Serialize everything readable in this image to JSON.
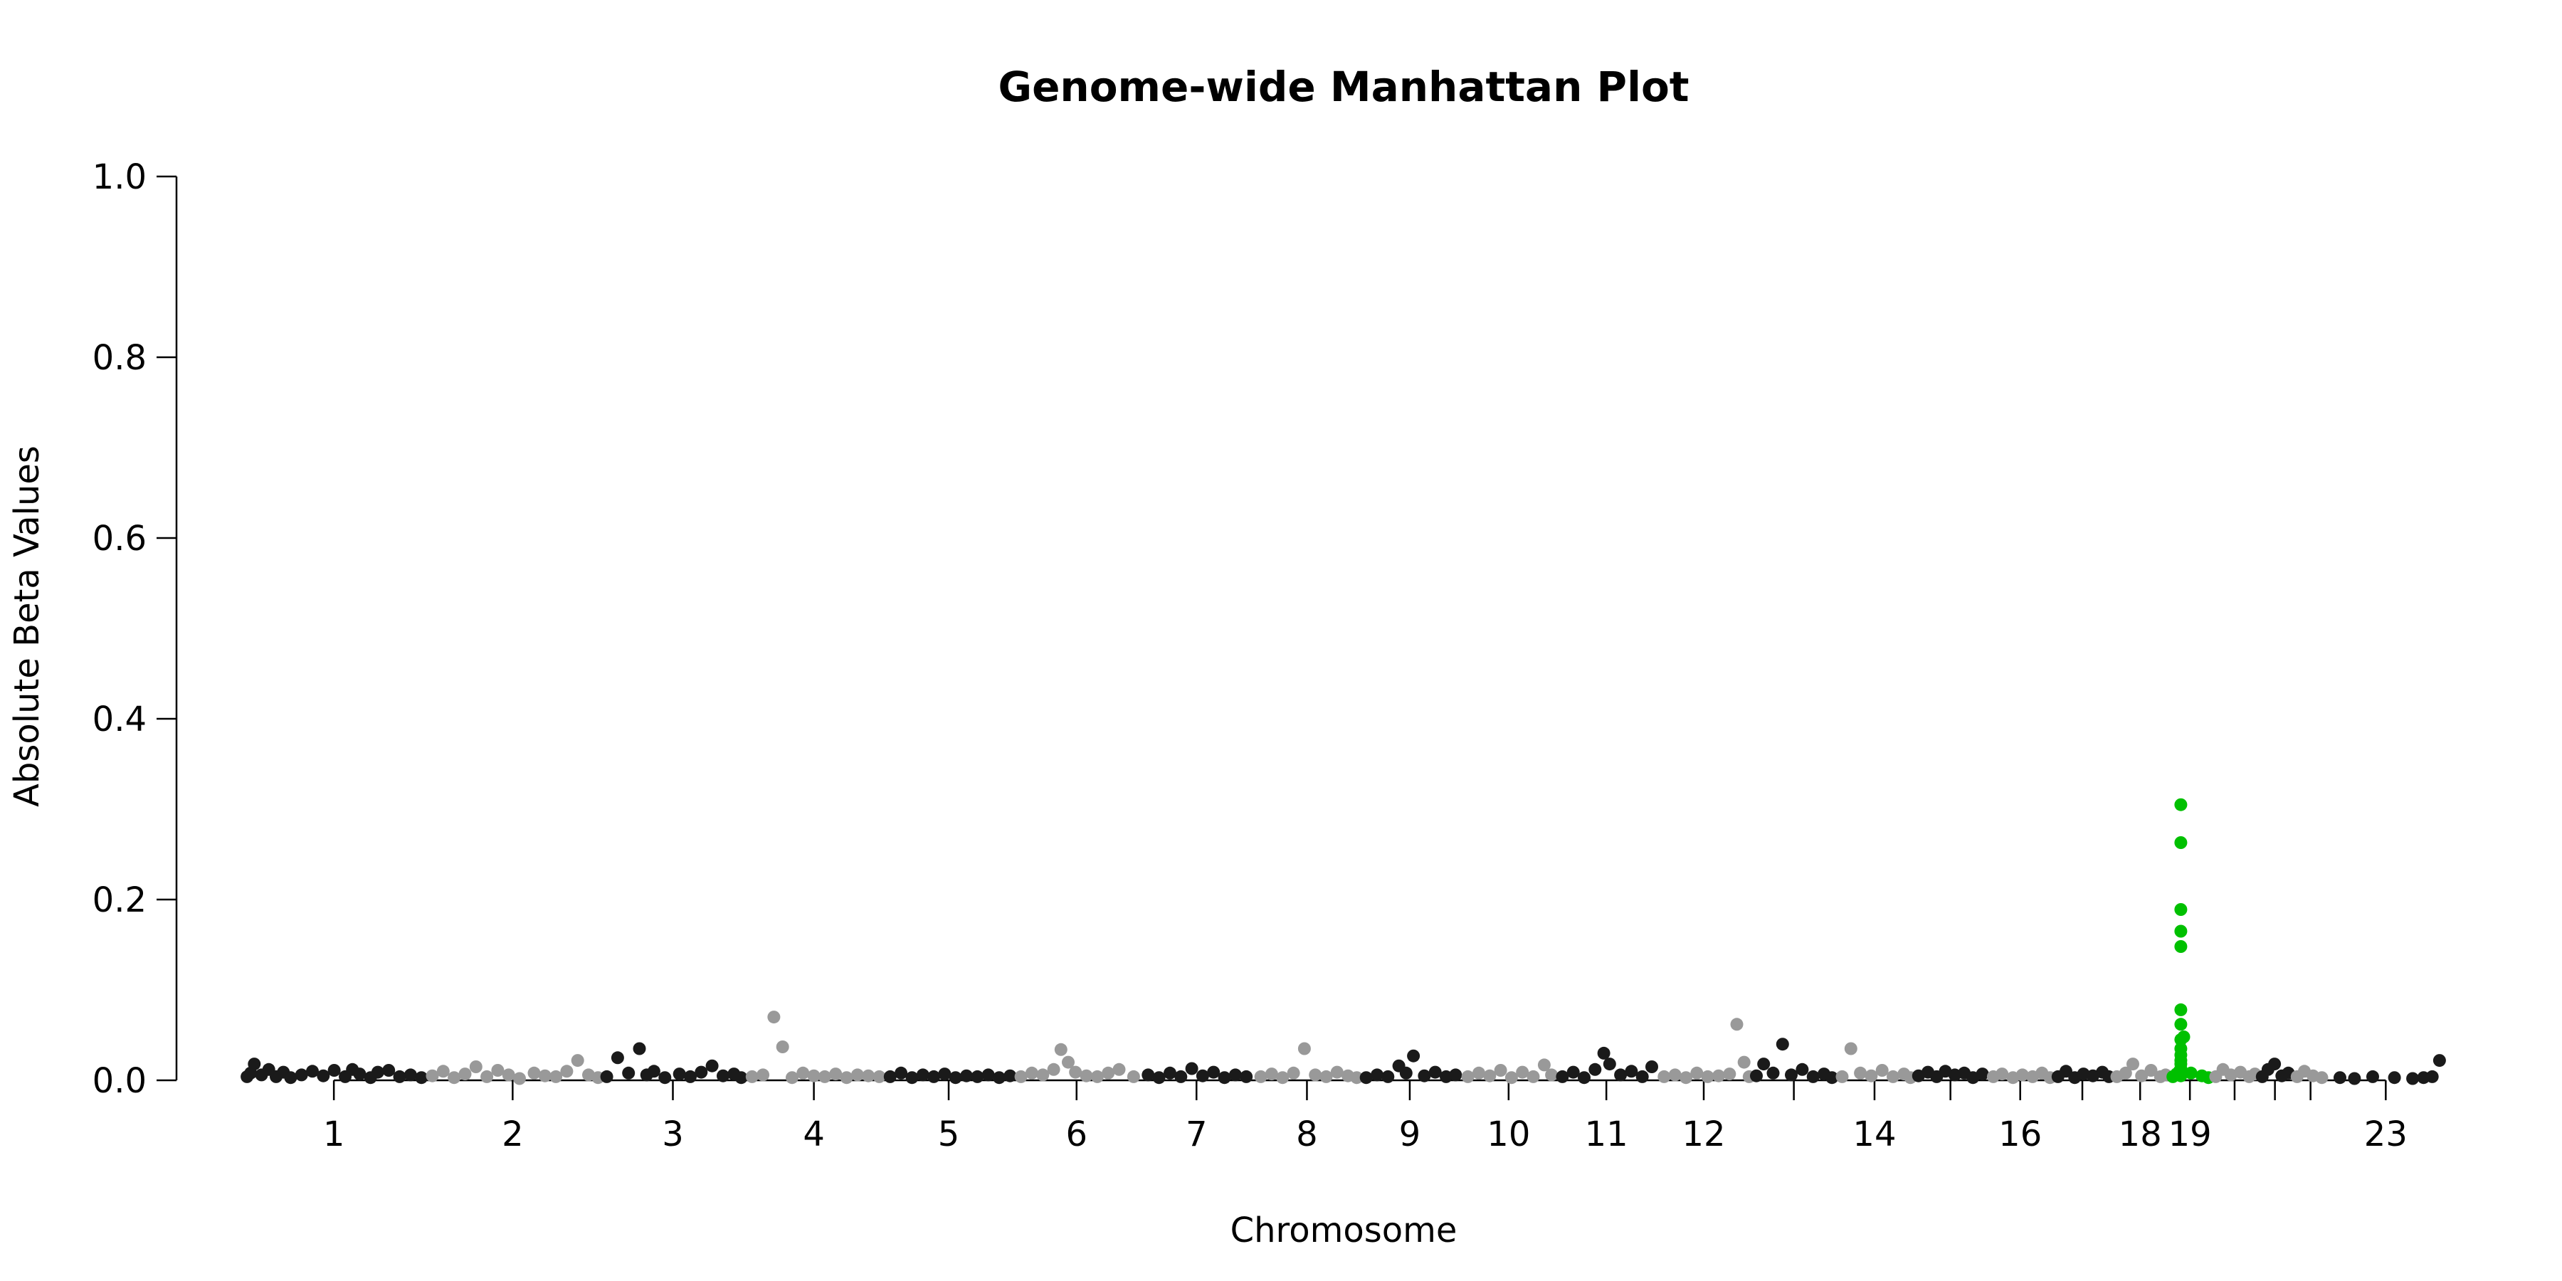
{
  "chart_data": {
    "type": "scatter",
    "title": "Genome-wide Manhattan Plot",
    "xlabel": "Chromosome",
    "ylabel": "Absolute Beta Values",
    "ylim": [
      0,
      1.0
    ],
    "yticks": [
      "0.0",
      "0.2",
      "0.4",
      "0.6",
      "0.8",
      "1.0"
    ],
    "xtick_labels": [
      "1",
      "2",
      "3",
      "4",
      "5",
      "6",
      "7",
      "8",
      "9",
      "10",
      "11",
      "12",
      "14",
      "16",
      "18",
      "19",
      "23"
    ],
    "grid": false,
    "legend": "none",
    "colors": {
      "odd": "#1a1a1a",
      "even": "#999999",
      "highlight": "#00c000"
    },
    "chromosomes": [
      {
        "chr": "1",
        "label": "1",
        "start": 0,
        "end": 249,
        "color": "odd",
        "points": [
          [
            5,
            0.004
          ],
          [
            10,
            0.008
          ],
          [
            15,
            0.018
          ],
          [
            25,
            0.006
          ],
          [
            35,
            0.012
          ],
          [
            45,
            0.004
          ],
          [
            55,
            0.009
          ],
          [
            65,
            0.003
          ],
          [
            80,
            0.006
          ],
          [
            95,
            0.01
          ],
          [
            110,
            0.005
          ],
          [
            125,
            0.011
          ],
          [
            140,
            0.004
          ],
          [
            150,
            0.012
          ],
          [
            160,
            0.007
          ],
          [
            175,
            0.003
          ],
          [
            185,
            0.009
          ],
          [
            200,
            0.011
          ],
          [
            215,
            0.004
          ],
          [
            230,
            0.006
          ],
          [
            245,
            0.003
          ]
        ]
      },
      {
        "chr": "2",
        "label": "2",
        "start": 249,
        "end": 492,
        "color": "even",
        "points": [
          [
            260,
            0.005
          ],
          [
            275,
            0.01
          ],
          [
            290,
            0.003
          ],
          [
            305,
            0.007
          ],
          [
            320,
            0.015
          ],
          [
            335,
            0.004
          ],
          [
            350,
            0.011
          ],
          [
            365,
            0.006
          ],
          [
            380,
            0.002
          ],
          [
            400,
            0.008
          ],
          [
            415,
            0.005
          ],
          [
            430,
            0.004
          ],
          [
            445,
            0.01
          ],
          [
            460,
            0.022
          ],
          [
            475,
            0.006
          ],
          [
            488,
            0.003
          ]
        ]
      },
      {
        "chr": "3",
        "label": "3",
        "start": 492,
        "end": 690,
        "color": "odd",
        "points": [
          [
            500,
            0.004
          ],
          [
            515,
            0.025
          ],
          [
            530,
            0.008
          ],
          [
            545,
            0.035
          ],
          [
            555,
            0.006
          ],
          [
            565,
            0.01
          ],
          [
            580,
            0.003
          ],
          [
            600,
            0.007
          ],
          [
            615,
            0.004
          ],
          [
            630,
            0.009
          ],
          [
            645,
            0.016
          ],
          [
            660,
            0.005
          ],
          [
            675,
            0.007
          ],
          [
            685,
            0.003
          ]
        ]
      },
      {
        "chr": "4",
        "label": "4",
        "start": 690,
        "end": 880,
        "color": "even",
        "points": [
          [
            700,
            0.004
          ],
          [
            715,
            0.006
          ],
          [
            730,
            0.07
          ],
          [
            742,
            0.037
          ],
          [
            755,
            0.003
          ],
          [
            770,
            0.008
          ],
          [
            785,
            0.005
          ],
          [
            800,
            0.004
          ],
          [
            815,
            0.007
          ],
          [
            830,
            0.003
          ],
          [
            845,
            0.006
          ],
          [
            860,
            0.005
          ],
          [
            875,
            0.004
          ]
        ]
      },
      {
        "chr": "5",
        "label": "5",
        "start": 880,
        "end": 1061,
        "color": "odd",
        "points": [
          [
            890,
            0.004
          ],
          [
            905,
            0.008
          ],
          [
            920,
            0.003
          ],
          [
            935,
            0.006
          ],
          [
            950,
            0.004
          ],
          [
            965,
            0.007
          ],
          [
            980,
            0.003
          ],
          [
            995,
            0.005
          ],
          [
            1010,
            0.004
          ],
          [
            1025,
            0.006
          ],
          [
            1040,
            0.003
          ],
          [
            1055,
            0.005
          ]
        ]
      },
      {
        "chr": "6",
        "label": "6",
        "start": 1061,
        "end": 1232,
        "color": "even",
        "points": [
          [
            1070,
            0.004
          ],
          [
            1085,
            0.008
          ],
          [
            1100,
            0.006
          ],
          [
            1115,
            0.012
          ],
          [
            1125,
            0.034
          ],
          [
            1135,
            0.02
          ],
          [
            1145,
            0.009
          ],
          [
            1160,
            0.005
          ],
          [
            1175,
            0.004
          ],
          [
            1190,
            0.008
          ],
          [
            1205,
            0.012
          ],
          [
            1225,
            0.004
          ]
        ]
      },
      {
        "chr": "7",
        "label": "7",
        "start": 1232,
        "end": 1391,
        "color": "odd",
        "points": [
          [
            1245,
            0.006
          ],
          [
            1260,
            0.003
          ],
          [
            1275,
            0.008
          ],
          [
            1290,
            0.004
          ],
          [
            1305,
            0.013
          ],
          [
            1320,
            0.005
          ],
          [
            1335,
            0.009
          ],
          [
            1350,
            0.003
          ],
          [
            1365,
            0.006
          ],
          [
            1380,
            0.004
          ]
        ]
      },
      {
        "chr": "8",
        "label": "8",
        "start": 1391,
        "end": 1536,
        "color": "even",
        "points": [
          [
            1400,
            0.004
          ],
          [
            1415,
            0.007
          ],
          [
            1430,
            0.003
          ],
          [
            1445,
            0.008
          ],
          [
            1460,
            0.035
          ],
          [
            1475,
            0.006
          ],
          [
            1490,
            0.004
          ],
          [
            1505,
            0.009
          ],
          [
            1520,
            0.005
          ],
          [
            1532,
            0.003
          ]
        ]
      },
      {
        "chr": "9",
        "label": "9",
        "start": 1536,
        "end": 1674,
        "color": "odd",
        "points": [
          [
            1545,
            0.003
          ],
          [
            1560,
            0.006
          ],
          [
            1575,
            0.004
          ],
          [
            1590,
            0.016
          ],
          [
            1600,
            0.008
          ],
          [
            1610,
            0.027
          ],
          [
            1625,
            0.005
          ],
          [
            1640,
            0.009
          ],
          [
            1655,
            0.004
          ],
          [
            1668,
            0.006
          ]
        ]
      },
      {
        "chr": "10",
        "label": "10",
        "start": 1674,
        "end": 1808,
        "color": "even",
        "points": [
          [
            1685,
            0.004
          ],
          [
            1700,
            0.008
          ],
          [
            1715,
            0.005
          ],
          [
            1730,
            0.011
          ],
          [
            1745,
            0.003
          ],
          [
            1760,
            0.009
          ],
          [
            1775,
            0.004
          ],
          [
            1790,
            0.017
          ],
          [
            1800,
            0.006
          ]
        ]
      },
      {
        "chr": "11",
        "label": "11",
        "start": 1808,
        "end": 1943,
        "color": "odd",
        "points": [
          [
            1815,
            0.004
          ],
          [
            1830,
            0.009
          ],
          [
            1845,
            0.003
          ],
          [
            1860,
            0.012
          ],
          [
            1872,
            0.03
          ],
          [
            1880,
            0.018
          ],
          [
            1895,
            0.006
          ],
          [
            1910,
            0.01
          ],
          [
            1925,
            0.004
          ],
          [
            1938,
            0.015
          ]
        ]
      },
      {
        "chr": "12",
        "label": "12",
        "start": 1943,
        "end": 2076,
        "color": "even",
        "points": [
          [
            1955,
            0.004
          ],
          [
            1970,
            0.006
          ],
          [
            1985,
            0.003
          ],
          [
            2000,
            0.008
          ],
          [
            2015,
            0.004
          ],
          [
            2030,
            0.005
          ],
          [
            2045,
            0.007
          ],
          [
            2055,
            0.062
          ],
          [
            2065,
            0.02
          ],
          [
            2072,
            0.004
          ]
        ]
      },
      {
        "chr": "13",
        "label": "",
        "start": 2076,
        "end": 2191,
        "color": "odd",
        "points": [
          [
            2082,
            0.005
          ],
          [
            2092,
            0.018
          ],
          [
            2105,
            0.008
          ],
          [
            2118,
            0.04
          ],
          [
            2130,
            0.006
          ],
          [
            2145,
            0.012
          ],
          [
            2160,
            0.004
          ],
          [
            2175,
            0.007
          ],
          [
            2186,
            0.003
          ]
        ]
      },
      {
        "chr": "14",
        "label": "14",
        "start": 2191,
        "end": 2298,
        "color": "even",
        "points": [
          [
            2200,
            0.004
          ],
          [
            2212,
            0.035
          ],
          [
            2225,
            0.008
          ],
          [
            2240,
            0.005
          ],
          [
            2255,
            0.011
          ],
          [
            2270,
            0.004
          ],
          [
            2285,
            0.007
          ],
          [
            2294,
            0.003
          ]
        ]
      },
      {
        "chr": "15",
        "label": "",
        "start": 2298,
        "end": 2400,
        "color": "odd",
        "points": [
          [
            2305,
            0.005
          ],
          [
            2318,
            0.009
          ],
          [
            2330,
            0.004
          ],
          [
            2342,
            0.01
          ],
          [
            2355,
            0.006
          ],
          [
            2368,
            0.008
          ],
          [
            2380,
            0.003
          ],
          [
            2393,
            0.007
          ]
        ]
      },
      {
        "chr": "16",
        "label": "16",
        "start": 2400,
        "end": 2490,
        "color": "even",
        "points": [
          [
            2408,
            0.004
          ],
          [
            2420,
            0.007
          ],
          [
            2435,
            0.003
          ],
          [
            2448,
            0.006
          ],
          [
            2462,
            0.004
          ],
          [
            2475,
            0.008
          ],
          [
            2486,
            0.003
          ]
        ]
      },
      {
        "chr": "17",
        "label": "",
        "start": 2490,
        "end": 2571,
        "color": "odd",
        "points": [
          [
            2497,
            0.004
          ],
          [
            2508,
            0.01
          ],
          [
            2520,
            0.003
          ],
          [
            2532,
            0.007
          ],
          [
            2545,
            0.005
          ],
          [
            2558,
            0.009
          ],
          [
            2567,
            0.004
          ]
        ]
      },
      {
        "chr": "18",
        "label": "18",
        "start": 2571,
        "end": 2649,
        "color": "even",
        "points": [
          [
            2578,
            0.004
          ],
          [
            2590,
            0.008
          ],
          [
            2600,
            0.018
          ],
          [
            2612,
            0.005
          ],
          [
            2625,
            0.011
          ],
          [
            2638,
            0.004
          ],
          [
            2645,
            0.006
          ]
        ]
      },
      {
        "chr": "19",
        "label": "19",
        "start": 2649,
        "end": 2708,
        "color": "highlight",
        "points": [
          [
            2655,
            0.004
          ],
          [
            2660,
            0.007
          ],
          [
            2664,
            0.01
          ],
          [
            2666,
            0.305
          ],
          [
            2666,
            0.263
          ],
          [
            2666,
            0.189
          ],
          [
            2666,
            0.165
          ],
          [
            2666,
            0.148
          ],
          [
            2666,
            0.078
          ],
          [
            2666,
            0.062
          ],
          [
            2666,
            0.045
          ],
          [
            2666,
            0.035
          ],
          [
            2666,
            0.028
          ],
          [
            2666,
            0.022
          ],
          [
            2666,
            0.018
          ],
          [
            2666,
            0.013
          ],
          [
            2666,
            0.009
          ],
          [
            2666,
            0.005
          ],
          [
            2670,
            0.048
          ],
          [
            2680,
            0.008
          ],
          [
            2695,
            0.005
          ],
          [
            2704,
            0.003
          ]
        ]
      },
      {
        "chr": "20",
        "label": "",
        "start": 2708,
        "end": 2772,
        "color": "even",
        "points": [
          [
            2714,
            0.004
          ],
          [
            2724,
            0.012
          ],
          [
            2735,
            0.006
          ],
          [
            2748,
            0.009
          ],
          [
            2760,
            0.004
          ],
          [
            2768,
            0.007
          ]
        ]
      },
      {
        "chr": "21",
        "label": "",
        "start": 2772,
        "end": 2819,
        "color": "odd",
        "points": [
          [
            2778,
            0.004
          ],
          [
            2786,
            0.012
          ],
          [
            2795,
            0.018
          ],
          [
            2805,
            0.005
          ],
          [
            2814,
            0.008
          ]
        ]
      },
      {
        "chr": "22",
        "label": "",
        "start": 2819,
        "end": 2870,
        "color": "even",
        "points": [
          [
            2826,
            0.004
          ],
          [
            2836,
            0.01
          ],
          [
            2848,
            0.005
          ],
          [
            2860,
            0.003
          ]
        ]
      },
      {
        "chr": "23",
        "label": "23",
        "start": 2870,
        "end": 3026,
        "color": "odd",
        "points": [
          [
            2885,
            0.003
          ],
          [
            2905,
            0.002
          ],
          [
            2930,
            0.004
          ],
          [
            2960,
            0.003
          ],
          [
            2985,
            0.002
          ],
          [
            3000,
            0.003
          ],
          [
            3012,
            0.004
          ],
          [
            3022,
            0.022
          ]
        ]
      }
    ]
  }
}
